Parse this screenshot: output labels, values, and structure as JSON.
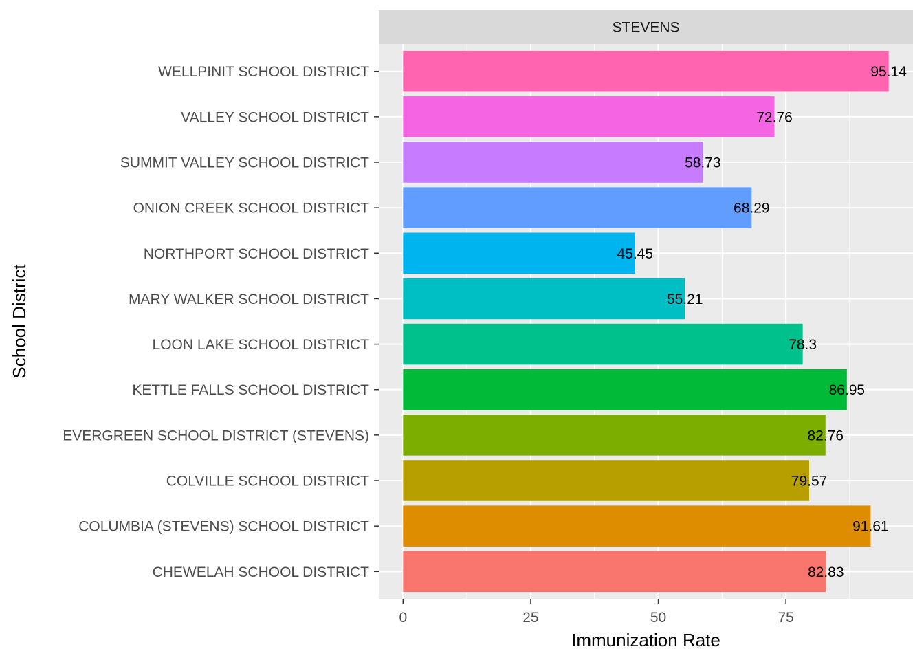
{
  "chart_data": {
    "type": "bar",
    "orientation": "horizontal",
    "facet_label": "STEVENS",
    "xlabel": "Immunization Rate",
    "ylabel": "School District",
    "xlim": [
      -4.76,
      99.9
    ],
    "xticks": [
      0,
      25,
      50,
      75
    ],
    "categories": [
      "CHEWELAH SCHOOL DISTRICT",
      "COLUMBIA (STEVENS) SCHOOL DISTRICT",
      "COLVILLE SCHOOL DISTRICT",
      "EVERGREEN SCHOOL DISTRICT (STEVENS)",
      "KETTLE FALLS SCHOOL DISTRICT",
      "LOON LAKE SCHOOL DISTRICT",
      "MARY WALKER SCHOOL DISTRICT",
      "NORTHPORT SCHOOL DISTRICT",
      "ONION CREEK SCHOOL DISTRICT",
      "SUMMIT VALLEY SCHOOL DISTRICT",
      "VALLEY SCHOOL DISTRICT",
      "WELLPINIT SCHOOL DISTRICT"
    ],
    "values": [
      82.83,
      91.61,
      79.57,
      82.76,
      86.95,
      78.3,
      55.21,
      45.45,
      68.29,
      58.73,
      72.76,
      95.14
    ],
    "value_labels": [
      "82.83",
      "91.61",
      "79.57",
      "82.76",
      "86.95",
      "78.3",
      "55.21",
      "45.45",
      "68.29",
      "58.73",
      "72.76",
      "95.14"
    ],
    "colors": [
      "#F8766D",
      "#DE8C00",
      "#B79F00",
      "#7CAE00",
      "#00BA38",
      "#00C08B",
      "#00BFC4",
      "#00B4F0",
      "#619CFF",
      "#C77CFF",
      "#F564E3",
      "#FF64B0"
    ],
    "panel_background": "#EBEBEB",
    "strip_background": "#D9D9D9",
    "grid": true,
    "legend": "none"
  }
}
